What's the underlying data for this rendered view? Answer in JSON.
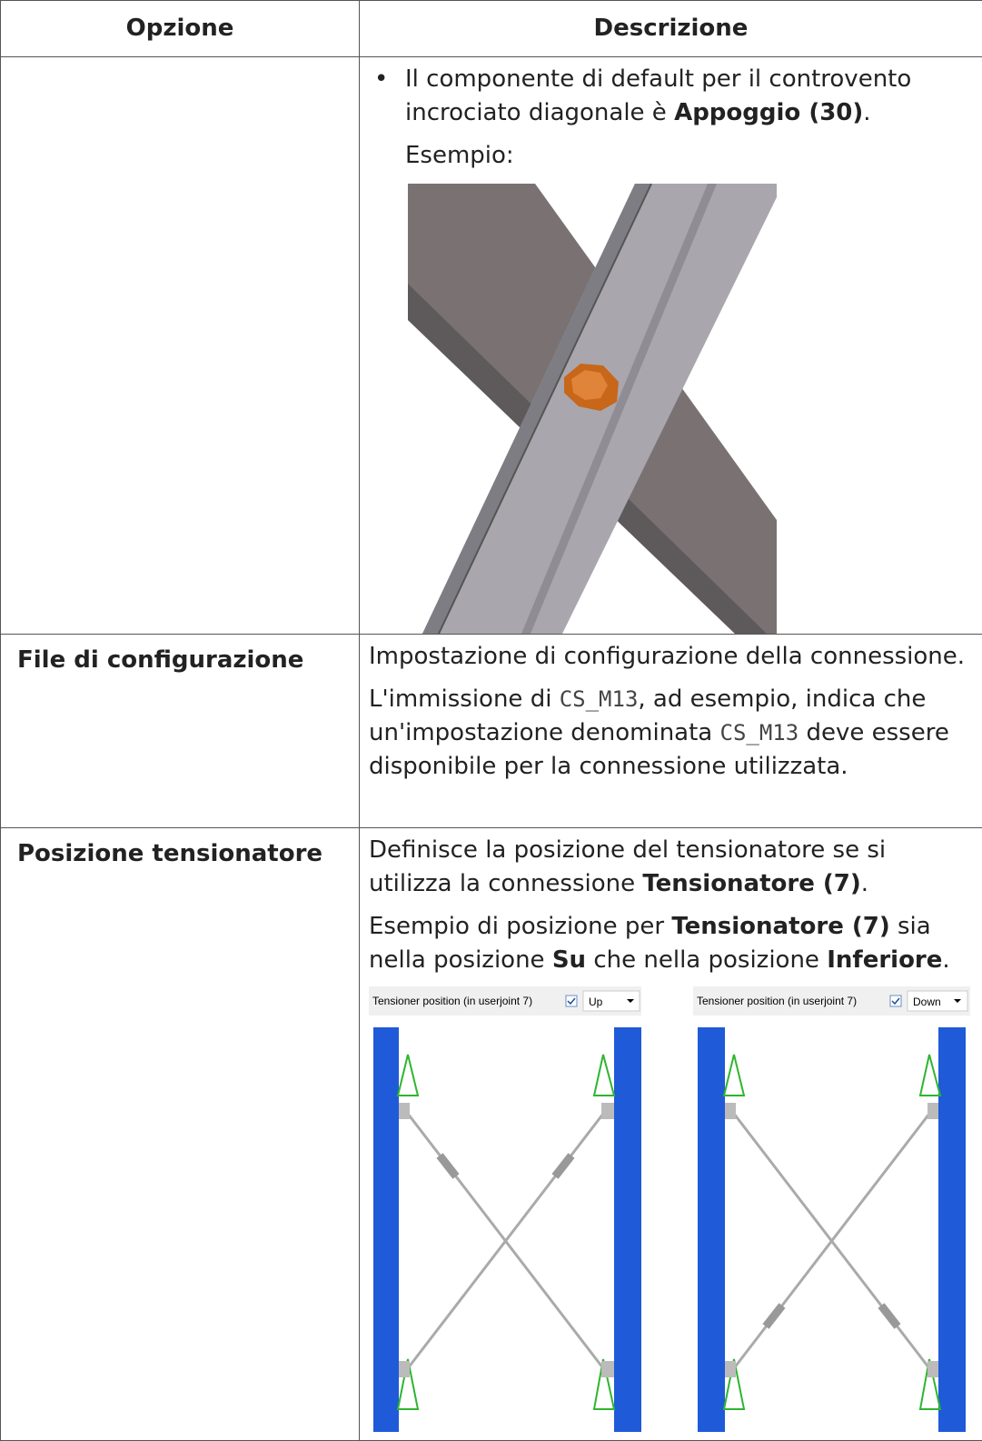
{
  "table": {
    "headers": [
      "Opzione",
      "Descrizione"
    ],
    "rows": [
      {
        "bullets": [
          [
            "Il componente di default per il controvento incrociato diagonale è ",
            {
              "text": "Appoggio (30)",
              "style": "bold"
            },
            "."
          ]
        ],
        "paragraphs": [
          [
            "Esempio:"
          ]
        ]
      },
      {
        "option": "File di configurazione",
        "paragraphs": [
          [
            "Impostazione di configurazione della connessione."
          ],
          [
            "L'immissione di ",
            {
              "text": "CS_M13",
              "style": "code"
            },
            ", ad esempio, indica che un'impostazione denominata ",
            {
              "text": "CS_M13",
              "style": "code"
            },
            " deve essere disponibile per la connessione utilizzata."
          ]
        ]
      },
      {
        "option": "Posizione tensionatore",
        "paragraphs": [
          [
            "Definisce la posizione del tensionatore se si utilizza la connessione ",
            {
              "text": "Tensionatore (7)",
              "style": "bold"
            },
            "."
          ],
          [
            "Esempio di posizione per ",
            {
              "text": "Tensionatore (7)",
              "style": "bold"
            },
            " sia nella posizione ",
            {
              "text": "Su",
              "style": "bold"
            },
            " che nella posizione ",
            {
              "text": "Inferiore",
              "style": "bold"
            },
            "."
          ]
        ],
        "figure": {
          "label": "Tensioner position (in userjoint 7)",
          "options": [
            "Up",
            "Down"
          ]
        }
      }
    ]
  }
}
